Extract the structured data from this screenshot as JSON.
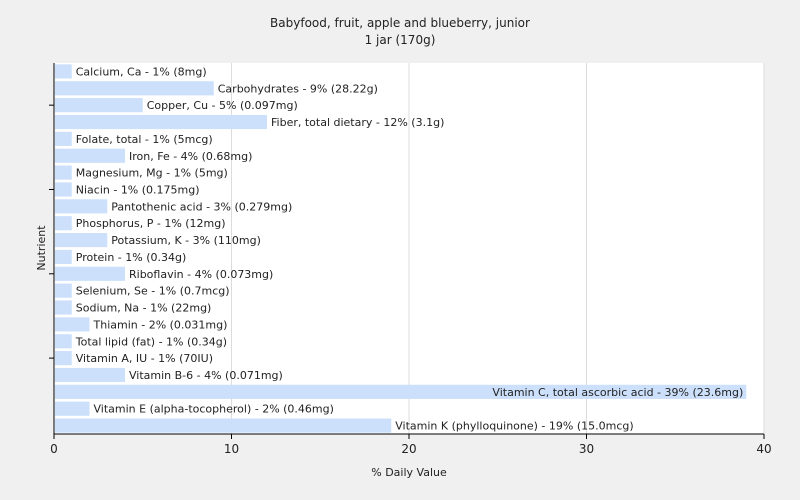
{
  "chart_data": {
    "type": "bar",
    "orientation": "horizontal",
    "title": "Babyfood, fruit, apple and blueberry, junior",
    "subtitle": "1 jar (170g)",
    "xlabel": "% Daily Value",
    "ylabel": "Nutrient",
    "xlim": [
      0,
      40
    ],
    "xticks": [
      0,
      10,
      20,
      30,
      40
    ],
    "grid": true,
    "bar_color": "#cce0fb",
    "categories": [
      "Calcium, Ca - 1% (8mg)",
      "Carbohydrates - 9% (28.22g)",
      "Copper, Cu - 5% (0.097mg)",
      "Fiber, total dietary - 12% (3.1g)",
      "Folate, total - 1% (5mcg)",
      "Iron, Fe - 4% (0.68mg)",
      "Magnesium, Mg - 1% (5mg)",
      "Niacin - 1% (0.175mg)",
      "Pantothenic acid - 3% (0.279mg)",
      "Phosphorus, P - 1% (12mg)",
      "Potassium, K - 3% (110mg)",
      "Protein - 1% (0.34g)",
      "Riboflavin - 4% (0.073mg)",
      "Selenium, Se - 1% (0.7mcg)",
      "Sodium, Na - 1% (22mg)",
      "Thiamin - 2% (0.031mg)",
      "Total lipid (fat) - 1% (0.34g)",
      "Vitamin A, IU - 1% (70IU)",
      "Vitamin B-6 - 4% (0.071mg)",
      "Vitamin C, total ascorbic acid - 39% (23.6mg)",
      "Vitamin E (alpha-tocopherol) - 2% (0.46mg)",
      "Vitamin K (phylloquinone) - 19% (15.0mcg)"
    ],
    "values": [
      1,
      9,
      5,
      12,
      1,
      4,
      1,
      1,
      3,
      1,
      3,
      1,
      4,
      1,
      1,
      2,
      1,
      1,
      4,
      39,
      2,
      19
    ]
  }
}
